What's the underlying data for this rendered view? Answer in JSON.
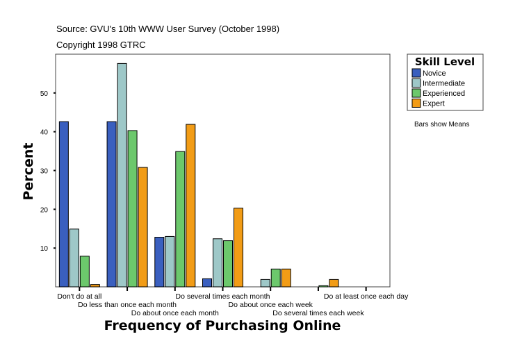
{
  "header": {
    "source": "Source: GVU's 10th WWW User Survey (October 1998)",
    "copyright": "Copyright 1998 GTRC"
  },
  "note": "Bars show Means",
  "chart_data": {
    "type": "bar",
    "title": "",
    "xlabel": "Frequency of Purchasing Online",
    "ylabel": "Percent",
    "ylim": [
      0,
      60
    ],
    "yticks": [
      10,
      20,
      30,
      40,
      50
    ],
    "grid": false,
    "legend": {
      "title": "Skill Level",
      "placement": "right-top"
    },
    "categories": [
      "Don't do at all",
      "Do less than once each month",
      "Do about once each month",
      "Do several times each month",
      "Do about once each week",
      "Do several times each week",
      "Do at least once each day"
    ],
    "series": [
      {
        "name": "Novice",
        "color": "#3a5fbf",
        "values": [
          42.6,
          42.6,
          12.8,
          2.1,
          0,
          0,
          0
        ]
      },
      {
        "name": "Intermediate",
        "color": "#9ec8c8",
        "values": [
          14.9,
          57.6,
          13.0,
          12.4,
          1.9,
          0,
          0
        ]
      },
      {
        "name": "Experienced",
        "color": "#6cc86c",
        "values": [
          7.9,
          40.3,
          34.9,
          11.9,
          4.6,
          0.3,
          0
        ]
      },
      {
        "name": "Expert",
        "color": "#f29c16",
        "values": [
          0.6,
          30.8,
          41.9,
          20.3,
          4.6,
          1.9,
          0
        ]
      }
    ]
  }
}
